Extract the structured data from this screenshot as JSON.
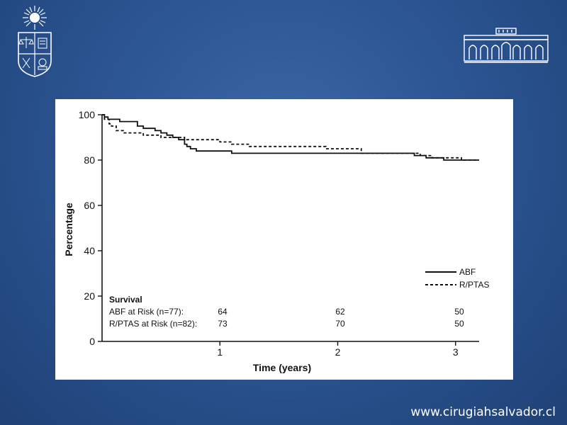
{
  "footer": {
    "url": "www.cirugiahsalvador.cl"
  },
  "logos": {
    "left": "university-crest-icon",
    "right": "hospital-building-icon"
  },
  "colors": {
    "background": "#2c5693",
    "panel": "#ffffff",
    "line": "#111111"
  },
  "chart_data": {
    "type": "line",
    "xlabel": "Time (years)",
    "ylabel": "Percentage",
    "xlim": [
      0,
      3.2
    ],
    "ylim": [
      0,
      100
    ],
    "x_ticks": [
      1,
      2,
      3
    ],
    "y_ticks": [
      0,
      20,
      40,
      60,
      80,
      100
    ],
    "grid": false,
    "legend_position": "bottom-right",
    "series": [
      {
        "name": "ABF",
        "style": "solid",
        "points": [
          [
            0.0,
            100
          ],
          [
            0.02,
            99
          ],
          [
            0.05,
            98
          ],
          [
            0.1,
            98
          ],
          [
            0.15,
            97
          ],
          [
            0.25,
            97
          ],
          [
            0.3,
            95
          ],
          [
            0.35,
            94
          ],
          [
            0.45,
            93
          ],
          [
            0.5,
            92
          ],
          [
            0.55,
            91
          ],
          [
            0.6,
            90
          ],
          [
            0.65,
            89
          ],
          [
            0.7,
            87
          ],
          [
            0.72,
            86
          ],
          [
            0.75,
            85
          ],
          [
            0.8,
            84
          ],
          [
            1.0,
            84
          ],
          [
            1.1,
            83
          ],
          [
            2.0,
            83
          ],
          [
            2.6,
            83
          ],
          [
            2.65,
            82
          ],
          [
            2.75,
            81
          ],
          [
            2.9,
            80
          ],
          [
            3.2,
            80
          ]
        ]
      },
      {
        "name": "R/PTAS",
        "style": "dashed",
        "points": [
          [
            0.0,
            100
          ],
          [
            0.02,
            98
          ],
          [
            0.06,
            96
          ],
          [
            0.08,
            95
          ],
          [
            0.12,
            93
          ],
          [
            0.18,
            92
          ],
          [
            0.3,
            92
          ],
          [
            0.35,
            91
          ],
          [
            0.45,
            91
          ],
          [
            0.5,
            90
          ],
          [
            0.6,
            90
          ],
          [
            0.7,
            89
          ],
          [
            0.9,
            89
          ],
          [
            1.0,
            88
          ],
          [
            1.1,
            87
          ],
          [
            1.25,
            86
          ],
          [
            1.5,
            86
          ],
          [
            1.8,
            86
          ],
          [
            1.9,
            85
          ],
          [
            2.2,
            83
          ],
          [
            2.6,
            83
          ],
          [
            2.7,
            82
          ],
          [
            2.8,
            81
          ],
          [
            3.0,
            81
          ],
          [
            3.05,
            80
          ],
          [
            3.2,
            80
          ]
        ]
      }
    ],
    "survival_table": {
      "title": "Survival",
      "rows": [
        {
          "label": "ABF at Risk (n=77):",
          "values": [
            "64",
            "62",
            "50"
          ]
        },
        {
          "label": "R/PTAS at Risk (n=82):",
          "values": [
            "73",
            "70",
            "50"
          ]
        }
      ]
    }
  }
}
